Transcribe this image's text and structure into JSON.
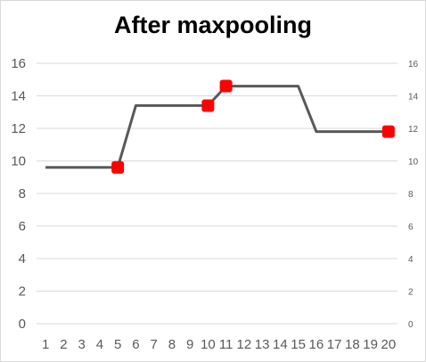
{
  "chart_data": {
    "type": "line",
    "title": "After maxpooling",
    "xlabel": "",
    "ylabel": "",
    "categories": [
      "1",
      "2",
      "3",
      "4",
      "5",
      "6",
      "7",
      "8",
      "9",
      "10",
      "11",
      "12",
      "13",
      "14",
      "15",
      "16",
      "17",
      "18",
      "19",
      "20"
    ],
    "series": [
      {
        "values": [
          9.6,
          9.6,
          9.6,
          9.6,
          9.6,
          13.4,
          13.4,
          13.4,
          13.4,
          13.4,
          14.6,
          14.6,
          14.6,
          14.6,
          14.6,
          11.8,
          11.8,
          11.8,
          11.8,
          11.8
        ],
        "color": "#595959"
      }
    ],
    "highlighted_points": [
      {
        "x": "5",
        "y": 9.6
      },
      {
        "x": "10",
        "y": 13.4
      },
      {
        "x": "11",
        "y": 14.6
      },
      {
        "x": "20",
        "y": 11.8
      }
    ],
    "marker_color": "#ff0000",
    "ylim": [
      0,
      16
    ],
    "yticks": [
      0,
      2,
      4,
      6,
      8,
      10,
      12,
      14,
      16
    ],
    "secondary_ylim": [
      0,
      16
    ],
    "secondary_yticks": [
      0,
      2,
      4,
      6,
      8,
      10,
      12,
      14,
      16
    ],
    "grid": true,
    "gridline_color": "#d9d9d9",
    "legend": "none"
  }
}
